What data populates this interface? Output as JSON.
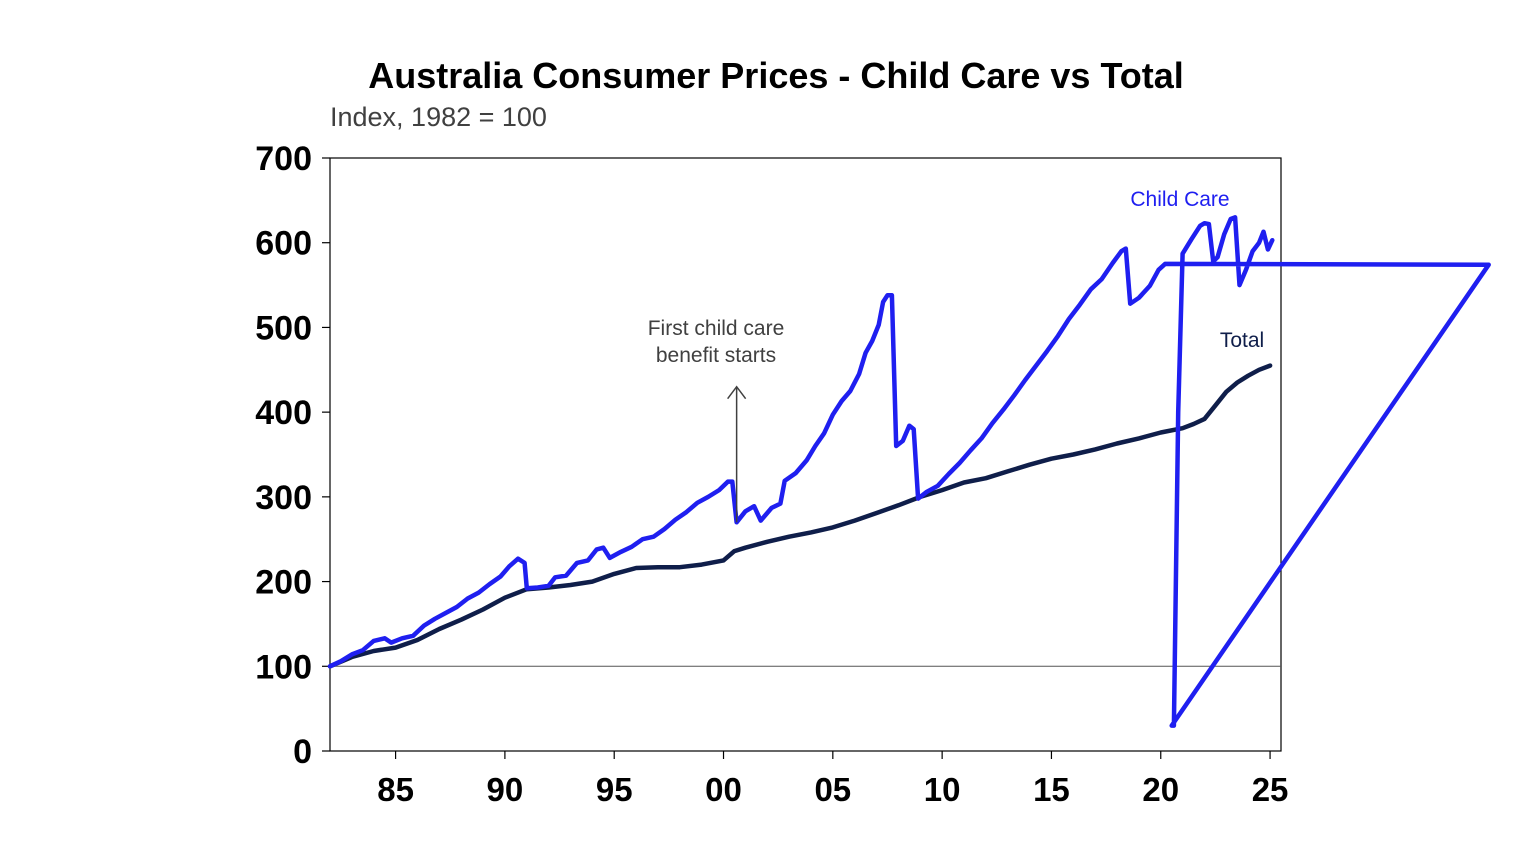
{
  "chart_data": {
    "type": "line",
    "title": "Australia Consumer Prices - Child Care vs Total",
    "subtitle": "Index, 1982 = 100",
    "xlabel": "",
    "ylabel": "",
    "xlim": [
      1982.0,
      2025.5
    ],
    "ylim": [
      0,
      700
    ],
    "y_ticks": [
      "0",
      "100",
      "200",
      "300",
      "400",
      "500",
      "600",
      "700"
    ],
    "x_ticks": [
      {
        "label": "85",
        "value": 1985
      },
      {
        "label": "90",
        "value": 1990
      },
      {
        "label": "95",
        "value": 1995
      },
      {
        "label": "00",
        "value": 2000
      },
      {
        "label": "05",
        "value": 2005
      },
      {
        "label": "10",
        "value": 2010
      },
      {
        "label": "15",
        "value": 2015
      },
      {
        "label": "20",
        "value": 2020
      },
      {
        "label": "25",
        "value": 2025
      }
    ],
    "reference_line": 100,
    "grid": false,
    "series": [
      {
        "name": "Child Care",
        "color": "#1f1ff0",
        "points": [
          [
            1982.0,
            100
          ],
          [
            1982.5,
            106
          ],
          [
            1983.0,
            114
          ],
          [
            1983.5,
            119
          ],
          [
            1984.0,
            130
          ],
          [
            1984.5,
            133
          ],
          [
            1984.8,
            128
          ],
          [
            1985.3,
            133
          ],
          [
            1985.8,
            136
          ],
          [
            1986.3,
            148
          ],
          [
            1986.8,
            156
          ],
          [
            1987.3,
            163
          ],
          [
            1987.8,
            170
          ],
          [
            1988.3,
            180
          ],
          [
            1988.8,
            187
          ],
          [
            1989.3,
            197
          ],
          [
            1989.8,
            206
          ],
          [
            1990.2,
            218
          ],
          [
            1990.6,
            227
          ],
          [
            1990.9,
            222
          ],
          [
            1991.0,
            192
          ],
          [
            1991.5,
            193
          ],
          [
            1992.0,
            195
          ],
          [
            1992.3,
            205
          ],
          [
            1992.8,
            207
          ],
          [
            1993.3,
            222
          ],
          [
            1993.8,
            225
          ],
          [
            1994.2,
            238
          ],
          [
            1994.5,
            240
          ],
          [
            1994.8,
            228
          ],
          [
            1995.3,
            235
          ],
          [
            1995.8,
            241
          ],
          [
            1996.3,
            250
          ],
          [
            1996.8,
            253
          ],
          [
            1997.3,
            262
          ],
          [
            1997.8,
            273
          ],
          [
            1998.3,
            282
          ],
          [
            1998.8,
            293
          ],
          [
            1999.3,
            300
          ],
          [
            1999.8,
            308
          ],
          [
            2000.2,
            318
          ],
          [
            2000.4,
            318
          ],
          [
            2000.6,
            270
          ],
          [
            2001.0,
            283
          ],
          [
            2001.4,
            289
          ],
          [
            2001.7,
            272
          ],
          [
            2002.2,
            287
          ],
          [
            2002.6,
            292
          ],
          [
            2002.8,
            319
          ],
          [
            2003.3,
            328
          ],
          [
            2003.8,
            343
          ],
          [
            2004.2,
            360
          ],
          [
            2004.6,
            375
          ],
          [
            2005.0,
            397
          ],
          [
            2005.4,
            413
          ],
          [
            2005.8,
            425
          ],
          [
            2006.2,
            445
          ],
          [
            2006.5,
            470
          ],
          [
            2006.8,
            484
          ],
          [
            2007.1,
            503
          ],
          [
            2007.3,
            530
          ],
          [
            2007.5,
            538
          ],
          [
            2007.7,
            538
          ],
          [
            2007.9,
            360
          ],
          [
            2008.2,
            366
          ],
          [
            2008.5,
            384
          ],
          [
            2008.7,
            380
          ],
          [
            2008.9,
            298
          ],
          [
            2009.3,
            306
          ],
          [
            2009.8,
            313
          ],
          [
            2010.3,
            327
          ],
          [
            2010.8,
            340
          ],
          [
            2011.3,
            355
          ],
          [
            2011.8,
            369
          ],
          [
            2012.3,
            387
          ],
          [
            2012.8,
            403
          ],
          [
            2013.3,
            420
          ],
          [
            2013.8,
            438
          ],
          [
            2014.3,
            455
          ],
          [
            2014.8,
            472
          ],
          [
            2015.3,
            490
          ],
          [
            2015.8,
            510
          ],
          [
            2016.3,
            527
          ],
          [
            2016.8,
            545
          ],
          [
            2017.3,
            557
          ],
          [
            2017.8,
            576
          ],
          [
            2018.2,
            590
          ],
          [
            2018.4,
            593
          ],
          [
            2018.6,
            528
          ],
          [
            2019.0,
            535
          ],
          [
            2019.5,
            549
          ],
          [
            2019.9,
            568
          ],
          [
            2020.2,
            575
          ],
          [
            2035.0,
            574
          ],
          [
            2020.5,
            30
          ],
          [
            2020.6,
            30
          ],
          [
            2020.8,
            400
          ],
          [
            2021.0,
            587
          ],
          [
            2021.4,
            604
          ],
          [
            2021.8,
            620
          ],
          [
            2022.0,
            623
          ],
          [
            2022.2,
            622
          ],
          [
            2022.4,
            578
          ],
          [
            2022.6,
            583
          ],
          [
            2022.9,
            610
          ],
          [
            2023.2,
            628
          ],
          [
            2023.4,
            630
          ],
          [
            2023.6,
            550
          ],
          [
            2023.9,
            568
          ],
          [
            2024.2,
            590
          ],
          [
            2024.5,
            600
          ],
          [
            2024.7,
            613
          ],
          [
            2024.9,
            592
          ],
          [
            2025.1,
            603
          ]
        ]
      },
      {
        "name": "Total",
        "color": "#0f1e4a",
        "points": [
          [
            1982.0,
            100
          ],
          [
            1983.0,
            111
          ],
          [
            1984.0,
            118
          ],
          [
            1985.0,
            122
          ],
          [
            1986.0,
            131
          ],
          [
            1987.0,
            144
          ],
          [
            1988.0,
            155
          ],
          [
            1989.0,
            167
          ],
          [
            1990.0,
            181
          ],
          [
            1991.0,
            191
          ],
          [
            1992.0,
            193
          ],
          [
            1993.0,
            196
          ],
          [
            1994.0,
            200
          ],
          [
            1995.0,
            209
          ],
          [
            1996.0,
            216
          ],
          [
            1997.0,
            217
          ],
          [
            1998.0,
            217
          ],
          [
            1999.0,
            220
          ],
          [
            2000.0,
            225
          ],
          [
            2000.5,
            236
          ],
          [
            2001.0,
            240
          ],
          [
            2002.0,
            247
          ],
          [
            2003.0,
            253
          ],
          [
            2004.0,
            258
          ],
          [
            2005.0,
            264
          ],
          [
            2006.0,
            272
          ],
          [
            2007.0,
            281
          ],
          [
            2008.0,
            290
          ],
          [
            2009.0,
            300
          ],
          [
            2010.0,
            308
          ],
          [
            2011.0,
            317
          ],
          [
            2012.0,
            322
          ],
          [
            2013.0,
            330
          ],
          [
            2014.0,
            338
          ],
          [
            2015.0,
            345
          ],
          [
            2016.0,
            350
          ],
          [
            2017.0,
            356
          ],
          [
            2018.0,
            363
          ],
          [
            2019.0,
            369
          ],
          [
            2020.0,
            376
          ],
          [
            2021.0,
            381
          ],
          [
            2021.5,
            386
          ],
          [
            2022.0,
            392
          ],
          [
            2022.5,
            408
          ],
          [
            2023.0,
            424
          ],
          [
            2023.5,
            435
          ],
          [
            2024.0,
            443
          ],
          [
            2024.5,
            450
          ],
          [
            2025.0,
            455
          ]
        ]
      }
    ],
    "annotation": {
      "text_lines": [
        "First child care",
        "benefit starts"
      ],
      "x": 2000.6,
      "y_from": 270,
      "y_to": 430
    }
  }
}
